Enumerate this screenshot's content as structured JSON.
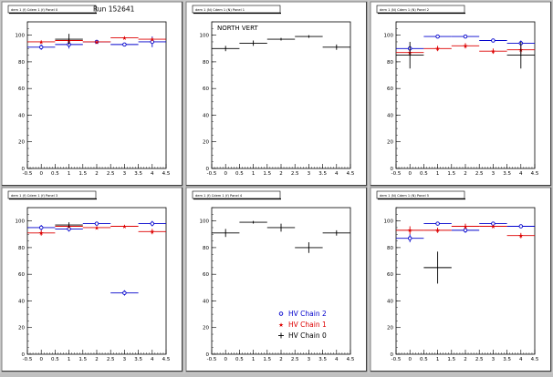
{
  "run_label": "Run 152641",
  "legend": [
    {
      "label": "HV Chain 2",
      "color": "#0000cc",
      "marker": "open-circle"
    },
    {
      "label": "HV Chain 1",
      "color": "#dd0000",
      "marker": "star"
    },
    {
      "label": "HV Chain 0",
      "color": "#000000",
      "marker": "cross"
    }
  ],
  "chart_data": [
    {
      "type": "scatter",
      "title": "dem 1 (f) Cdem 1 (f) Panel 0",
      "annotation": "",
      "xlim": [
        -0.5,
        4.5
      ],
      "ylim": [
        0,
        110
      ],
      "xticks": [
        "-0.5",
        "0",
        "0.5",
        "1",
        "1.5",
        "2",
        "2.5",
        "3",
        "3.5",
        "4",
        "4.5"
      ],
      "yticks": [
        "0",
        "20",
        "40",
        "60",
        "80",
        "100"
      ],
      "series": [
        {
          "name": "HV Chain 2",
          "color": "#0000cc",
          "marker": "open-circle",
          "x": [
            0,
            1,
            2,
            3,
            4
          ],
          "y": [
            91,
            93,
            95,
            93,
            95
          ],
          "xerr": 0.5,
          "yerr": [
            2,
            3,
            1,
            1,
            4
          ]
        },
        {
          "name": "HV Chain 1",
          "color": "#dd0000",
          "marker": "star",
          "x": [
            0,
            1,
            2,
            3,
            4
          ],
          "y": [
            95,
            96,
            95,
            98,
            97
          ],
          "xerr": 0.5,
          "yerr": [
            1,
            1,
            1,
            1,
            1
          ]
        },
        {
          "name": "HV Chain 0",
          "color": "#000000",
          "marker": "cross",
          "x": [
            1
          ],
          "y": [
            97
          ],
          "xerr": 0.5,
          "yerr": [
            4
          ]
        }
      ]
    },
    {
      "type": "scatter",
      "title": "dem 1 (N) Cdem 1 (N) Panel 1",
      "annotation": "NORTH VERT",
      "xlim": [
        -0.5,
        4.5
      ],
      "ylim": [
        0,
        110
      ],
      "xticks": [
        "-0.5",
        "0",
        "0.5",
        "1",
        "1.5",
        "2",
        "2.5",
        "3",
        "3.5",
        "4",
        "4.5"
      ],
      "yticks": [
        "0",
        "20",
        "40",
        "60",
        "80",
        "100"
      ],
      "series": [
        {
          "name": "HV Chain 0",
          "color": "#000000",
          "marker": "cross",
          "x": [
            0,
            1,
            2,
            3,
            4
          ],
          "y": [
            90,
            94,
            97,
            99,
            91
          ],
          "xerr": 0.5,
          "yerr": [
            2,
            2,
            1,
            1,
            2
          ]
        }
      ]
    },
    {
      "type": "scatter",
      "title": "dem 1 (N) Cdem 1 (N) Panel 2",
      "annotation": "",
      "xlim": [
        -0.5,
        4.5
      ],
      "ylim": [
        0,
        110
      ],
      "xticks": [
        "-0.5",
        "0",
        "0.5",
        "1",
        "1.5",
        "2",
        "2.5",
        "3",
        "3.5",
        "4",
        "4.5"
      ],
      "yticks": [
        "0",
        "20",
        "40",
        "60",
        "80",
        "100"
      ],
      "series": [
        {
          "name": "HV Chain 2",
          "color": "#0000cc",
          "marker": "open-circle",
          "x": [
            0,
            1,
            2,
            3,
            4
          ],
          "y": [
            90,
            99,
            99,
            96,
            94
          ],
          "xerr": 0.5,
          "yerr": [
            2,
            1,
            1,
            1,
            2
          ]
        },
        {
          "name": "HV Chain 1",
          "color": "#dd0000",
          "marker": "star",
          "x": [
            0,
            1,
            2,
            3,
            4
          ],
          "y": [
            87,
            90,
            92,
            88,
            89
          ],
          "xerr": 0.5,
          "yerr": [
            2,
            2,
            2,
            2,
            3
          ]
        },
        {
          "name": "HV Chain 0",
          "color": "#000000",
          "marker": "cross",
          "x": [
            0,
            4
          ],
          "y": [
            85,
            85
          ],
          "xerr": 0.5,
          "yerr": [
            10,
            10
          ]
        }
      ]
    },
    {
      "type": "scatter",
      "title": "dem 1 (f) Cdem 1 (f) Panel 3",
      "annotation": "",
      "xlim": [
        -0.5,
        4.5
      ],
      "ylim": [
        0,
        110
      ],
      "xticks": [
        "-0.5",
        "0",
        "0.5",
        "1",
        "1.5",
        "2",
        "2.5",
        "3",
        "3.5",
        "4",
        "4.5"
      ],
      "yticks": [
        "0",
        "20",
        "40",
        "60",
        "80",
        "100"
      ],
      "series": [
        {
          "name": "HV Chain 2",
          "color": "#0000cc",
          "marker": "open-circle",
          "x": [
            0,
            1,
            2,
            3,
            4
          ],
          "y": [
            95,
            94,
            98,
            46,
            98
          ],
          "xerr": 0.5,
          "yerr": [
            2,
            2,
            1,
            2,
            2
          ]
        },
        {
          "name": "HV Chain 1",
          "color": "#dd0000",
          "marker": "star",
          "x": [
            0,
            1,
            2,
            3,
            4
          ],
          "y": [
            91,
            96,
            95,
            96,
            92
          ],
          "xerr": 0.5,
          "yerr": [
            2,
            1,
            1,
            1,
            2
          ]
        },
        {
          "name": "HV Chain 0",
          "color": "#000000",
          "marker": "cross",
          "x": [
            1
          ],
          "y": [
            97
          ],
          "xerr": 0.5,
          "yerr": [
            2
          ]
        }
      ]
    },
    {
      "type": "scatter",
      "title": "dem 1 (f) Cdem 1 (f) Panel 4",
      "annotation": "",
      "xlim": [
        -0.5,
        4.5
      ],
      "ylim": [
        0,
        110
      ],
      "xticks": [
        "-0.5",
        "0",
        "0.5",
        "1",
        "1.5",
        "2",
        "2.5",
        "3",
        "3.5",
        "4",
        "4.5"
      ],
      "yticks": [
        "0",
        "20",
        "40",
        "60",
        "80",
        "100"
      ],
      "series": [
        {
          "name": "HV Chain 0",
          "color": "#000000",
          "marker": "cross",
          "x": [
            0,
            1,
            2,
            3,
            4
          ],
          "y": [
            91,
            99,
            95,
            80,
            91
          ],
          "xerr": 0.5,
          "yerr": [
            3,
            1,
            3,
            4,
            2
          ]
        }
      ]
    },
    {
      "type": "scatter",
      "title": "dem 1 (N) Cdem 1 (N) Panel 5",
      "annotation": "",
      "xlim": [
        -0.5,
        4.5
      ],
      "ylim": [
        0,
        110
      ],
      "xticks": [
        "-0.5",
        "0",
        "0.5",
        "1",
        "1.5",
        "2",
        "2.5",
        "3",
        "3.5",
        "4",
        "4.5"
      ],
      "yticks": [
        "0",
        "20",
        "40",
        "60",
        "80",
        "100"
      ],
      "series": [
        {
          "name": "HV Chain 2",
          "color": "#0000cc",
          "marker": "open-circle",
          "x": [
            0,
            1,
            2,
            3,
            4
          ],
          "y": [
            87,
            98,
            93,
            98,
            96
          ],
          "xerr": 0.5,
          "yerr": [
            3,
            1,
            2,
            1,
            1
          ]
        },
        {
          "name": "HV Chain 1",
          "color": "#dd0000",
          "marker": "star",
          "x": [
            0,
            1,
            2,
            3,
            4
          ],
          "y": [
            93,
            93,
            96,
            96,
            89
          ],
          "xerr": 0.5,
          "yerr": [
            3,
            2,
            2,
            1,
            2
          ]
        },
        {
          "name": "HV Chain 0",
          "color": "#000000",
          "marker": "cross",
          "x": [
            1
          ],
          "y": [
            65
          ],
          "xerr": 0.5,
          "yerr": [
            12
          ]
        }
      ]
    }
  ]
}
